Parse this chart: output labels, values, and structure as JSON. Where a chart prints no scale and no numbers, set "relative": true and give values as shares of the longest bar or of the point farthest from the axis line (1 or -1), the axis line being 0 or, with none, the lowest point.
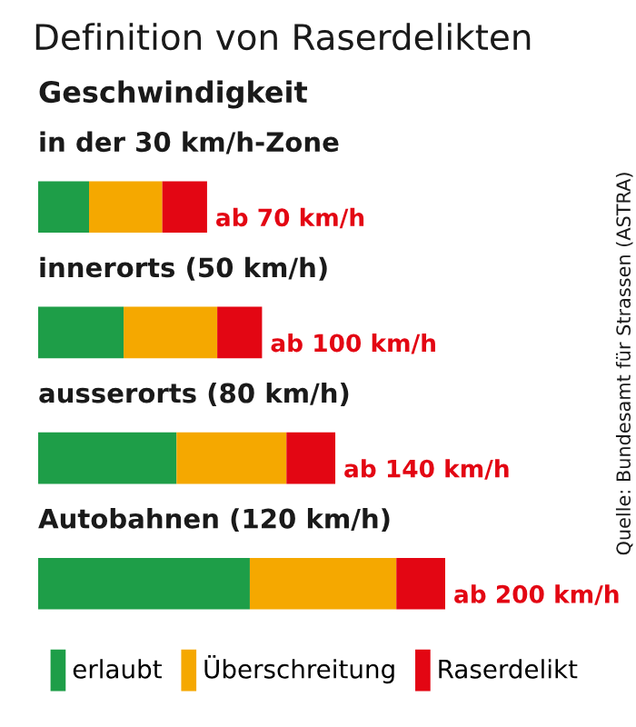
{
  "chart_data": {
    "type": "bar",
    "orientation": "horizontal",
    "stacked": true,
    "relative": true,
    "title": "Definition von Raserdelikten",
    "subtitle": "Geschwindigkeit",
    "categories": [
      "in der 30 km/h-Zone",
      "innerorts (50 km/h)",
      "ausserorts (80 km/h)",
      "Autobahnen (120 km/h)"
    ],
    "series": [
      {
        "name": "erlaubt",
        "color": "#1e9e48",
        "values": [
          0.125,
          0.21,
          0.34,
          0.52
        ]
      },
      {
        "name": "Überschreitung",
        "color": "#f5a800",
        "values": [
          0.18,
          0.23,
          0.27,
          0.36
        ]
      },
      {
        "name": "Raserdelikt",
        "color": "#e30613",
        "values": [
          0.11,
          0.11,
          0.12,
          0.12
        ]
      }
    ],
    "totals": [
      "ab 70 km/h",
      "ab 100 km/h",
      "ab 140 km/h",
      "ab 200 km/h"
    ],
    "legend": "bottom",
    "annotations": [
      "Quelle: Bundesamt für Strassen (ASTRA)"
    ]
  }
}
